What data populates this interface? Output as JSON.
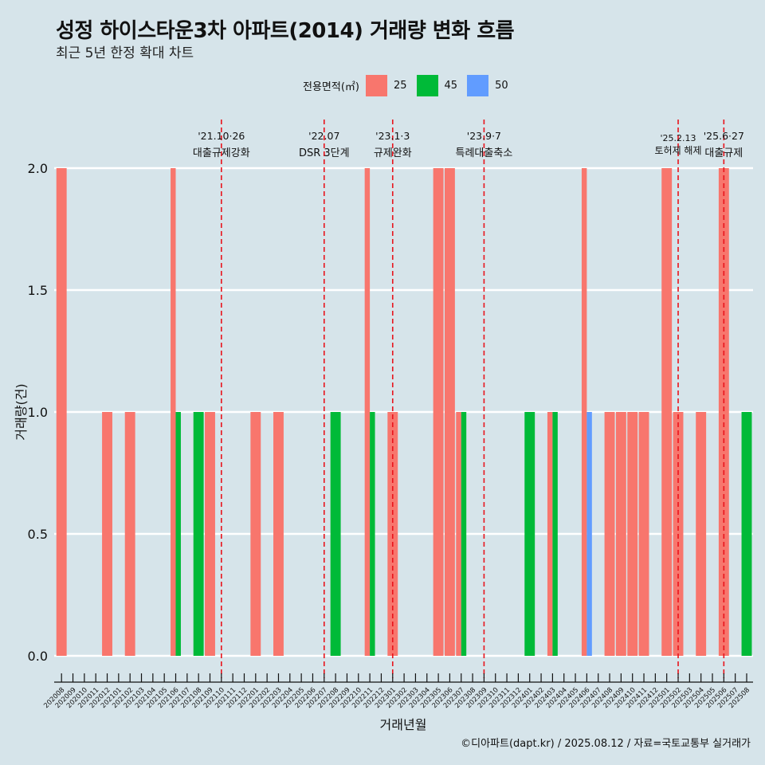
{
  "title": "성정 하이스타운3차 아파트(2014) 거래량 변화 흐름",
  "subtitle": "최근 5년 한정 확대 차트",
  "caption": "©디아파트(dapt.kr) / 2025.08.12 / 자료=국토교통부 실거래가",
  "legend": {
    "title": "전용면적(㎡)",
    "items": [
      {
        "label": "25",
        "color": "#f8766d"
      },
      {
        "label": "45",
        "color": "#00ba38"
      },
      {
        "label": "50",
        "color": "#619cff"
      }
    ]
  },
  "chart_data": {
    "type": "bar",
    "xlabel": "거래년월",
    "ylabel": "거래량(건)",
    "ylim": [
      0,
      2
    ],
    "yticks": [
      "0.0",
      "0.5",
      "1.0",
      "1.5",
      "2.0"
    ],
    "grid": true,
    "legend_position": "top",
    "categories": [
      "202008",
      "202009",
      "202010",
      "202011",
      "202012",
      "202101",
      "202102",
      "202103",
      "202104",
      "202105",
      "202106",
      "202107",
      "202108",
      "202109",
      "202110",
      "202111",
      "202112",
      "202201",
      "202202",
      "202203",
      "202204",
      "202205",
      "202206",
      "202207",
      "202208",
      "202209",
      "202210",
      "202211",
      "202212",
      "202301",
      "202302",
      "202303",
      "202304",
      "202305",
      "202306",
      "202307",
      "202308",
      "202309",
      "202310",
      "202311",
      "202312",
      "202401",
      "202402",
      "202403",
      "202404",
      "202405",
      "202406",
      "202407",
      "202408",
      "202409",
      "202410",
      "202411",
      "202412",
      "202501",
      "202502",
      "202503",
      "202504",
      "202505",
      "202506",
      "202507",
      "202508"
    ],
    "series": [
      {
        "name": "25",
        "color": "#f8766d",
        "values": [
          2,
          0,
          0,
          0,
          1,
          0,
          1,
          0,
          0,
          0,
          2,
          0,
          0,
          1,
          0,
          0,
          0,
          1,
          0,
          1,
          0,
          0,
          0,
          0,
          0,
          0,
          0,
          2,
          0,
          1,
          0,
          0,
          0,
          2,
          2,
          1,
          0,
          0,
          0,
          0,
          0,
          0,
          0,
          1,
          0,
          0,
          2,
          0,
          1,
          1,
          1,
          1,
          0,
          2,
          1,
          0,
          1,
          0,
          2,
          0,
          0
        ]
      },
      {
        "name": "45",
        "color": "#00ba38",
        "values": [
          0,
          0,
          0,
          0,
          0,
          0,
          0,
          0,
          0,
          0,
          1,
          0,
          1,
          0,
          0,
          0,
          0,
          0,
          0,
          0,
          0,
          0,
          0,
          0,
          1,
          0,
          0,
          1,
          0,
          0,
          0,
          0,
          0,
          0,
          0,
          1,
          0,
          0,
          0,
          0,
          0,
          1,
          0,
          1,
          0,
          0,
          0,
          0,
          0,
          0,
          0,
          0,
          0,
          0,
          0,
          0,
          0,
          0,
          0,
          0,
          1
        ]
      },
      {
        "name": "50",
        "color": "#619cff",
        "values": [
          0,
          0,
          0,
          0,
          0,
          0,
          0,
          0,
          0,
          0,
          0,
          0,
          0,
          0,
          0,
          0,
          0,
          0,
          0,
          0,
          0,
          0,
          0,
          0,
          0,
          0,
          0,
          0,
          0,
          0,
          0,
          0,
          0,
          0,
          0,
          0,
          0,
          0,
          0,
          0,
          0,
          0,
          0,
          0,
          0,
          0,
          1,
          0,
          0,
          0,
          0,
          0,
          0,
          0,
          0,
          0,
          0,
          0,
          0,
          0,
          0
        ]
      }
    ],
    "annotations": [
      {
        "x": "202110",
        "date": "'21.10·26",
        "label": "대출규제강화"
      },
      {
        "x": "202207",
        "date": "'22.07",
        "label": "DSR 3단계"
      },
      {
        "x": "202301",
        "date": "'23.1·3",
        "label": "규제완화"
      },
      {
        "x": "202309",
        "date": "'23.9·7",
        "label": "특례대출축소"
      },
      {
        "x": "202502",
        "date": "'25.2.13",
        "label": "토허제 해제"
      },
      {
        "x": "202506",
        "date": "'25.6·27",
        "label": "대출규제"
      }
    ]
  }
}
